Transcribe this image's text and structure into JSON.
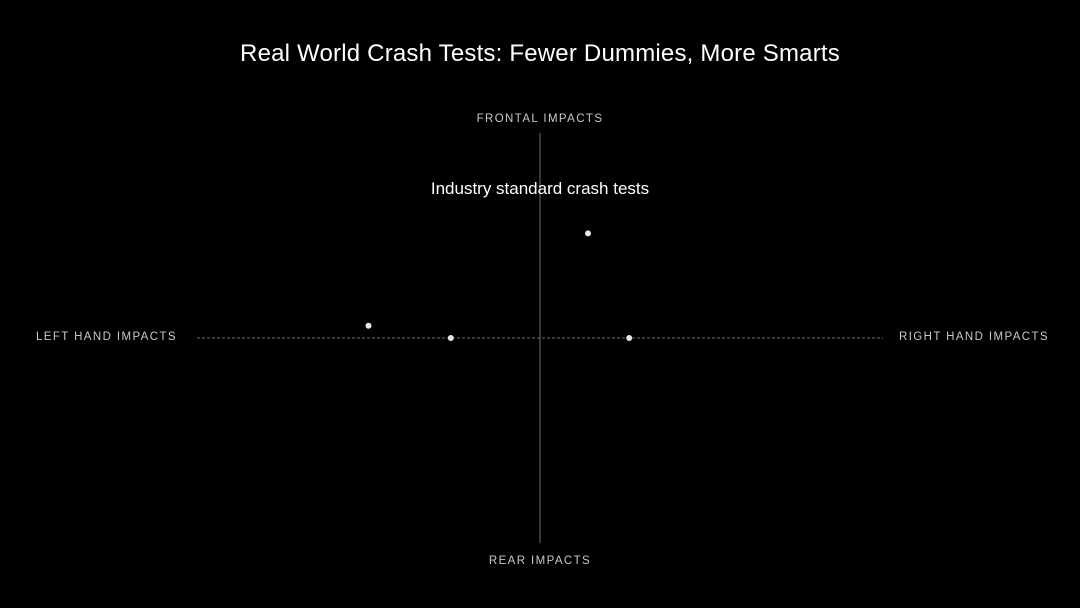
{
  "slide": {
    "title": "Real World Crash Tests: Fewer Dummies, More Smarts",
    "annotation": "Industry standard crash tests"
  },
  "chart_data": {
    "type": "scatter",
    "title": "Real World Crash Tests: Fewer Dummies, More Smarts",
    "axis_labels": {
      "top": "FRONTAL IMPACTS",
      "bottom": "REAR IMPACTS",
      "left": "LEFT HAND IMPACTS",
      "right": "RIGHT HAND IMPACTS"
    },
    "xlim": [
      -1,
      1
    ],
    "ylim": [
      -1,
      1
    ],
    "grid": false,
    "legend": "none",
    "points": [
      {
        "x": 0.14,
        "y": 0.51
      },
      {
        "x": -0.5,
        "y": 0.06
      },
      {
        "x": -0.26,
        "y": 0.0
      },
      {
        "x": 0.26,
        "y": 0.0
      }
    ],
    "annotation": "Industry standard crash tests",
    "colors": {
      "background": "#000000",
      "axis": "#6e6e6e",
      "point": "#e6e6e6",
      "text": "#ffffff",
      "axis_label": "#c8c8c8"
    }
  }
}
